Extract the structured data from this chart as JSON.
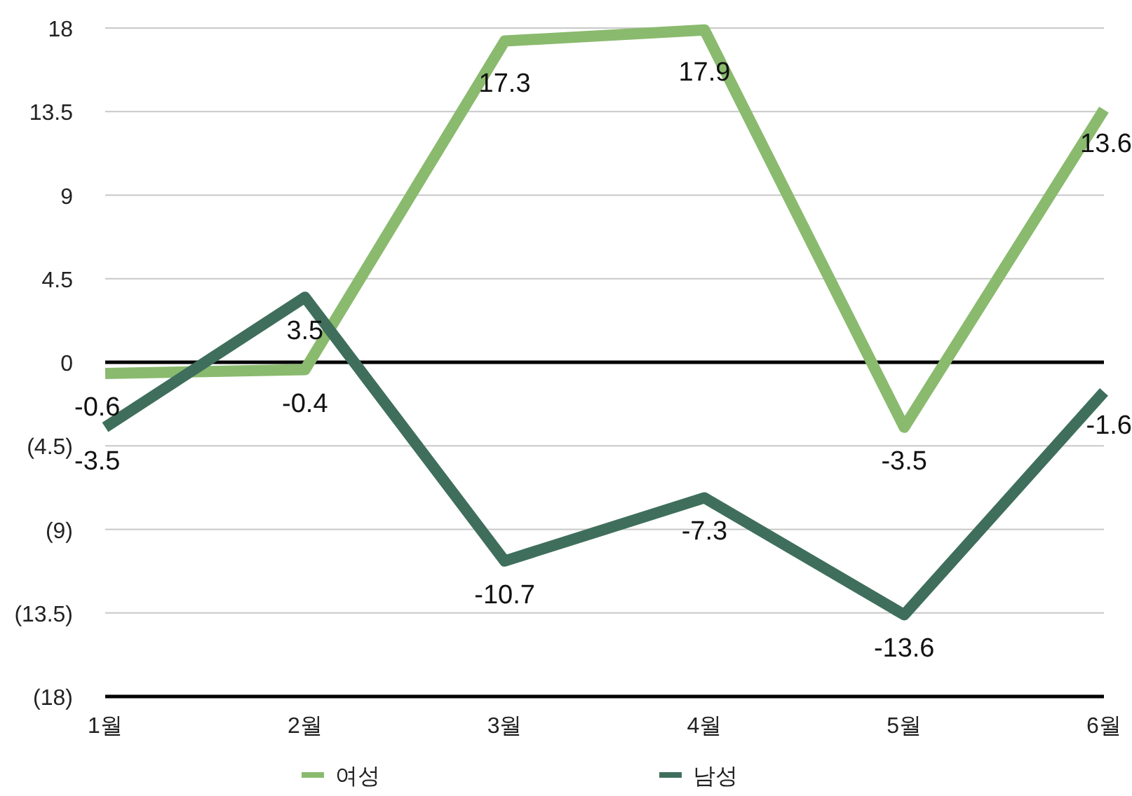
{
  "chart_data": {
    "type": "line",
    "categories": [
      "1월",
      "2월",
      "3월",
      "4월",
      "5월",
      "6월"
    ],
    "series": [
      {
        "name": "여성",
        "color": "#8aba6e",
        "values": [
          -0.6,
          -0.4,
          17.3,
          17.9,
          -3.5,
          13.6
        ]
      },
      {
        "name": "남성",
        "color": "#3f6f5c",
        "values": [
          -3.5,
          3.5,
          -10.7,
          -7.3,
          -13.6,
          -1.6
        ]
      }
    ],
    "ylim": [
      -18,
      18
    ],
    "yticks": [
      {
        "value": -18,
        "label": "(18)"
      },
      {
        "value": -13.5,
        "label": "(13.5)"
      },
      {
        "value": -9,
        "label": "(9)"
      },
      {
        "value": -4.5,
        "label": "(4.5)"
      },
      0,
      4.5,
      9,
      13.5,
      18
    ],
    "ref_lines": [
      {
        "axis": "y",
        "value": 0,
        "color": "#000000"
      }
    ],
    "grid": "y",
    "legend": "bottom",
    "data_labels": true,
    "marker": "none",
    "line_style": "solid"
  }
}
